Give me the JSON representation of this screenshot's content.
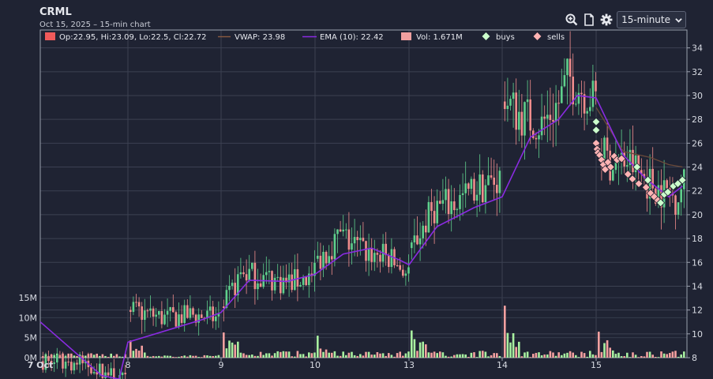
{
  "header": {
    "ticker": "CRML",
    "subtitle": "Oct 15, 2025 – 15-min chart"
  },
  "toolbar": {
    "icons": [
      "zoom-icon",
      "document-icon",
      "gear-icon"
    ],
    "interval_selected": "15-minute"
  },
  "legend": {
    "ohlc": "Op:22.95, Hi:23.09, Lo:22.5, Cl:22.72",
    "vwap": "VWAP: 23.98",
    "ema": "EMA (10): 22.42",
    "vol": "Vol: 1.671M",
    "buys": "buys",
    "sells": "sells",
    "colors": {
      "ohlc": "#f05a5a",
      "vwap": "#8a5a40",
      "ema": "#8a2be2",
      "vol": "#f0a0a0",
      "buys": "#ccffcc",
      "sells": "#ffb3b3"
    }
  },
  "chart_data": {
    "type": "candlestick",
    "x_tick_labels": [
      "7 Oct",
      "8",
      "9",
      "10",
      "13",
      "14",
      "15"
    ],
    "y_ticks": [
      8,
      10,
      12,
      14,
      16,
      18,
      20,
      22,
      24,
      26,
      28,
      30,
      32,
      34
    ],
    "volume_ticks": [
      "0M",
      "5M",
      "10M",
      "15M"
    ],
    "price_range": [
      8,
      35.5
    ],
    "volume_range_M": [
      0,
      16
    ],
    "grid": true,
    "colors": {
      "up": "#5fd08c",
      "down": "#f08c8c",
      "vol_up": "#a8f0a0",
      "vol_down": "#f5a0a0",
      "ema": "#8a2be2",
      "vwap": "#6b4a3a"
    },
    "day_anchors": [
      {
        "day": "7 Oct",
        "points": [
          [
            0,
            7.7
          ],
          [
            0.5,
            7.5
          ],
          [
            1,
            6.1
          ]
        ]
      },
      {
        "day": "8",
        "points": [
          [
            0,
            12.0
          ],
          [
            0.4,
            11.3
          ],
          [
            0.7,
            11.6
          ],
          [
            1,
            11.3
          ]
        ]
      },
      {
        "day": "9",
        "points": [
          [
            0,
            12.3
          ],
          [
            0.2,
            15.2
          ],
          [
            0.4,
            14.8
          ],
          [
            0.7,
            14.3
          ],
          [
            1,
            14.9
          ]
        ]
      },
      {
        "day": "10",
        "points": [
          [
            0,
            16.3
          ],
          [
            0.25,
            18.2
          ],
          [
            0.5,
            17.0
          ],
          [
            0.8,
            16.3
          ],
          [
            1,
            15.0
          ]
        ]
      },
      {
        "day": "13",
        "points": [
          [
            0,
            17.2
          ],
          [
            0.25,
            20.6
          ],
          [
            0.5,
            21.0
          ],
          [
            0.75,
            22.3
          ],
          [
            1,
            23.0
          ]
        ]
      },
      {
        "day": "14",
        "points": [
          [
            0,
            29.5
          ],
          [
            0.15,
            28.5
          ],
          [
            0.4,
            27.5
          ],
          [
            0.6,
            29.5
          ],
          [
            0.7,
            31.5
          ],
          [
            0.85,
            30.5
          ],
          [
            1,
            29.5
          ]
        ]
      },
      {
        "day": "15",
        "points": [
          [
            0,
            25.5
          ],
          [
            0.15,
            24.3
          ],
          [
            0.35,
            24.5
          ],
          [
            0.55,
            23.0
          ],
          [
            0.75,
            22.0
          ],
          [
            0.9,
            21.5
          ],
          [
            1,
            22.7
          ]
        ]
      }
    ],
    "ema_points": [
      [
        0,
        11.0
      ],
      [
        0.7,
        6.5
      ],
      [
        0.9,
        6.2
      ],
      [
        1.0,
        9.3
      ],
      [
        1.8,
        11.2
      ],
      [
        2.0,
        11.8
      ],
      [
        2.3,
        14.5
      ],
      [
        2.7,
        14.4
      ],
      [
        3.0,
        15.0
      ],
      [
        3.3,
        16.7
      ],
      [
        3.6,
        17.2
      ],
      [
        3.9,
        16.2
      ],
      [
        4.0,
        15.8
      ],
      [
        4.3,
        19.0
      ],
      [
        4.7,
        20.6
      ],
      [
        5.0,
        21.5
      ],
      [
        5.3,
        26.5
      ],
      [
        5.6,
        28.0
      ],
      [
        5.8,
        30.0
      ],
      [
        6.0,
        29.8
      ],
      [
        6.3,
        25.0
      ],
      [
        6.55,
        23.0
      ],
      [
        6.8,
        21.5
      ],
      [
        6.95,
        22.4
      ]
    ],
    "vwap_points": [
      [
        6.0,
        29.0
      ],
      [
        6.3,
        25.3
      ],
      [
        6.6,
        24.8
      ],
      [
        6.8,
        24.2
      ],
      [
        6.95,
        24.0
      ]
    ],
    "buys": [
      [
        6.0,
        27.8
      ],
      [
        6.0,
        27.1
      ],
      [
        6.45,
        24.0
      ],
      [
        6.57,
        22.9
      ],
      [
        6.71,
        21.0
      ],
      [
        6.75,
        21.7
      ],
      [
        6.79,
        21.9
      ],
      [
        6.85,
        22.4
      ],
      [
        6.9,
        22.6
      ],
      [
        6.95,
        22.9
      ]
    ],
    "sells": [
      [
        6.0,
        26.0
      ],
      [
        6.01,
        25.5
      ],
      [
        6.02,
        25.2
      ],
      [
        6.04,
        25.0
      ],
      [
        6.06,
        24.6
      ],
      [
        6.08,
        24.2
      ],
      [
        6.1,
        23.8
      ],
      [
        6.13,
        24.4
      ],
      [
        6.16,
        24.0
      ],
      [
        6.2,
        24.9
      ],
      [
        6.23,
        24.6
      ],
      [
        6.28,
        24.7
      ],
      [
        6.35,
        23.4
      ],
      [
        6.4,
        23.0
      ],
      [
        6.47,
        22.6
      ],
      [
        6.55,
        22.3
      ],
      [
        6.6,
        21.8
      ],
      [
        6.64,
        21.5
      ],
      [
        6.68,
        21.2
      ]
    ],
    "volume_day_peaks_M": [
      {
        "day": "7 Oct",
        "peak": 1.2
      },
      {
        "day": "8",
        "peak": 4.3
      },
      {
        "day": "9",
        "peak": 6.3
      },
      {
        "day": "10",
        "peak": 5.5
      },
      {
        "day": "13",
        "peak": 6.8
      },
      {
        "day": "14",
        "peak": 13.0
      },
      {
        "day": "15",
        "peak": 6.5
      }
    ]
  }
}
